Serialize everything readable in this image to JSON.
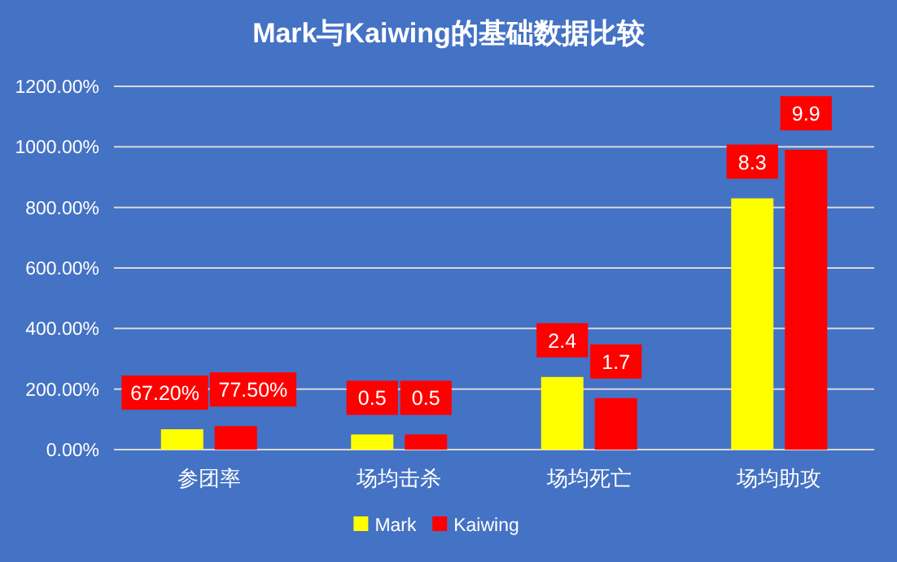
{
  "chart_data": {
    "type": "bar",
    "title": "Mark与Kaiwing的基础数据比较",
    "categories": [
      "参团率",
      "场均击杀",
      "场均死亡",
      "场均助攻"
    ],
    "series": [
      {
        "name": "Mark",
        "color": "#ffff00",
        "values": [
          0.672,
          0.5,
          2.4,
          8.3
        ],
        "value_labels": [
          "67.20%",
          "0.5",
          "2.4",
          "8.3"
        ]
      },
      {
        "name": "Kaiwing",
        "color": "#ff0000",
        "values": [
          0.775,
          0.5,
          1.7,
          9.9
        ],
        "value_labels": [
          "77.50%",
          "0.5",
          "1.7",
          "9.9"
        ]
      }
    ],
    "ylim": [
      0,
      12
    ],
    "yticks": [
      {
        "value": 0,
        "label": "0.00%"
      },
      {
        "value": 2,
        "label": "200.00%"
      },
      {
        "value": 4,
        "label": "400.00%"
      },
      {
        "value": 6,
        "label": "600.00%"
      },
      {
        "value": 8,
        "label": "800.00%"
      },
      {
        "value": 10,
        "label": "1000.00%"
      },
      {
        "value": 12,
        "label": "1200.00%"
      }
    ],
    "grid": "y",
    "legend": "bottom"
  }
}
